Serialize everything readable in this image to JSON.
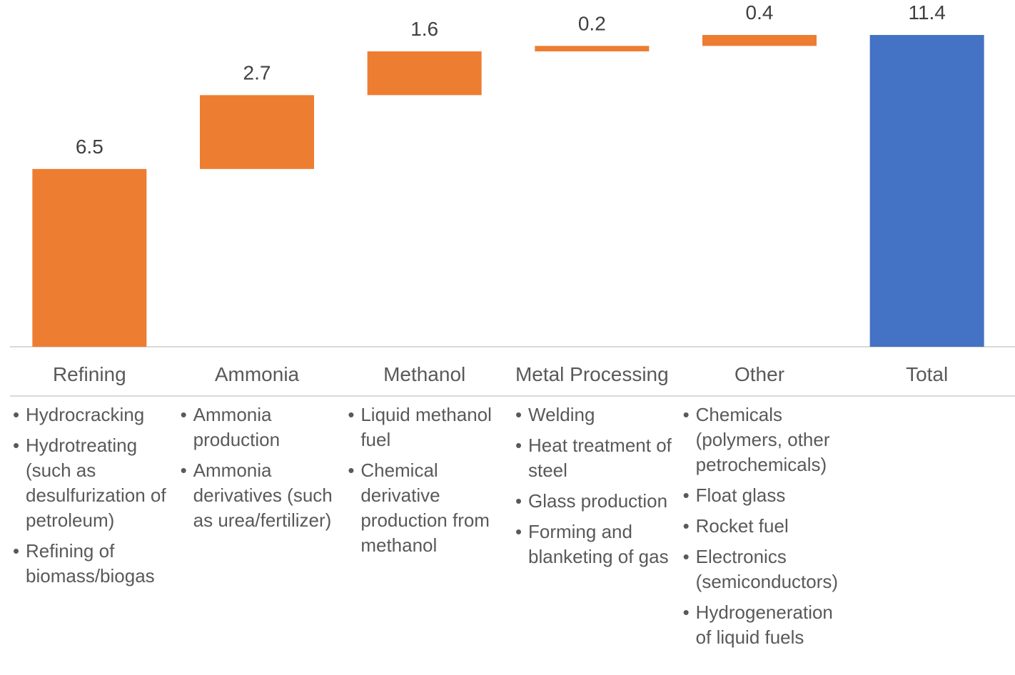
{
  "chart_data": {
    "type": "waterfall",
    "categories": [
      "Refining",
      "Ammonia",
      "Methanol",
      "Metal Processing",
      "Other",
      "Total"
    ],
    "values": [
      6.5,
      2.7,
      1.6,
      0.2,
      0.4,
      11.4
    ],
    "increase_color": "#ed7d31",
    "total_color": "#4472c4",
    "notes": [
      [
        "Hydrocracking",
        "Hydrotreating (such as desulfurization of petroleum)",
        "Refining of biomass/biogas"
      ],
      [
        "Ammonia production",
        "Ammonia derivatives (such as urea/fertilizer)"
      ],
      [
        "Liquid methanol fuel",
        "Chemical derivative production from methanol"
      ],
      [
        "Welding",
        "Heat treatment of steel",
        "Glass production",
        "Forming and blanketing of gas"
      ],
      [
        "Chemicals (polymers, other petrochemicals)",
        "Float glass",
        "Rocket fuel",
        "Electronics (semiconductors)",
        "Hydrogeneration of liquid fuels"
      ],
      []
    ]
  }
}
